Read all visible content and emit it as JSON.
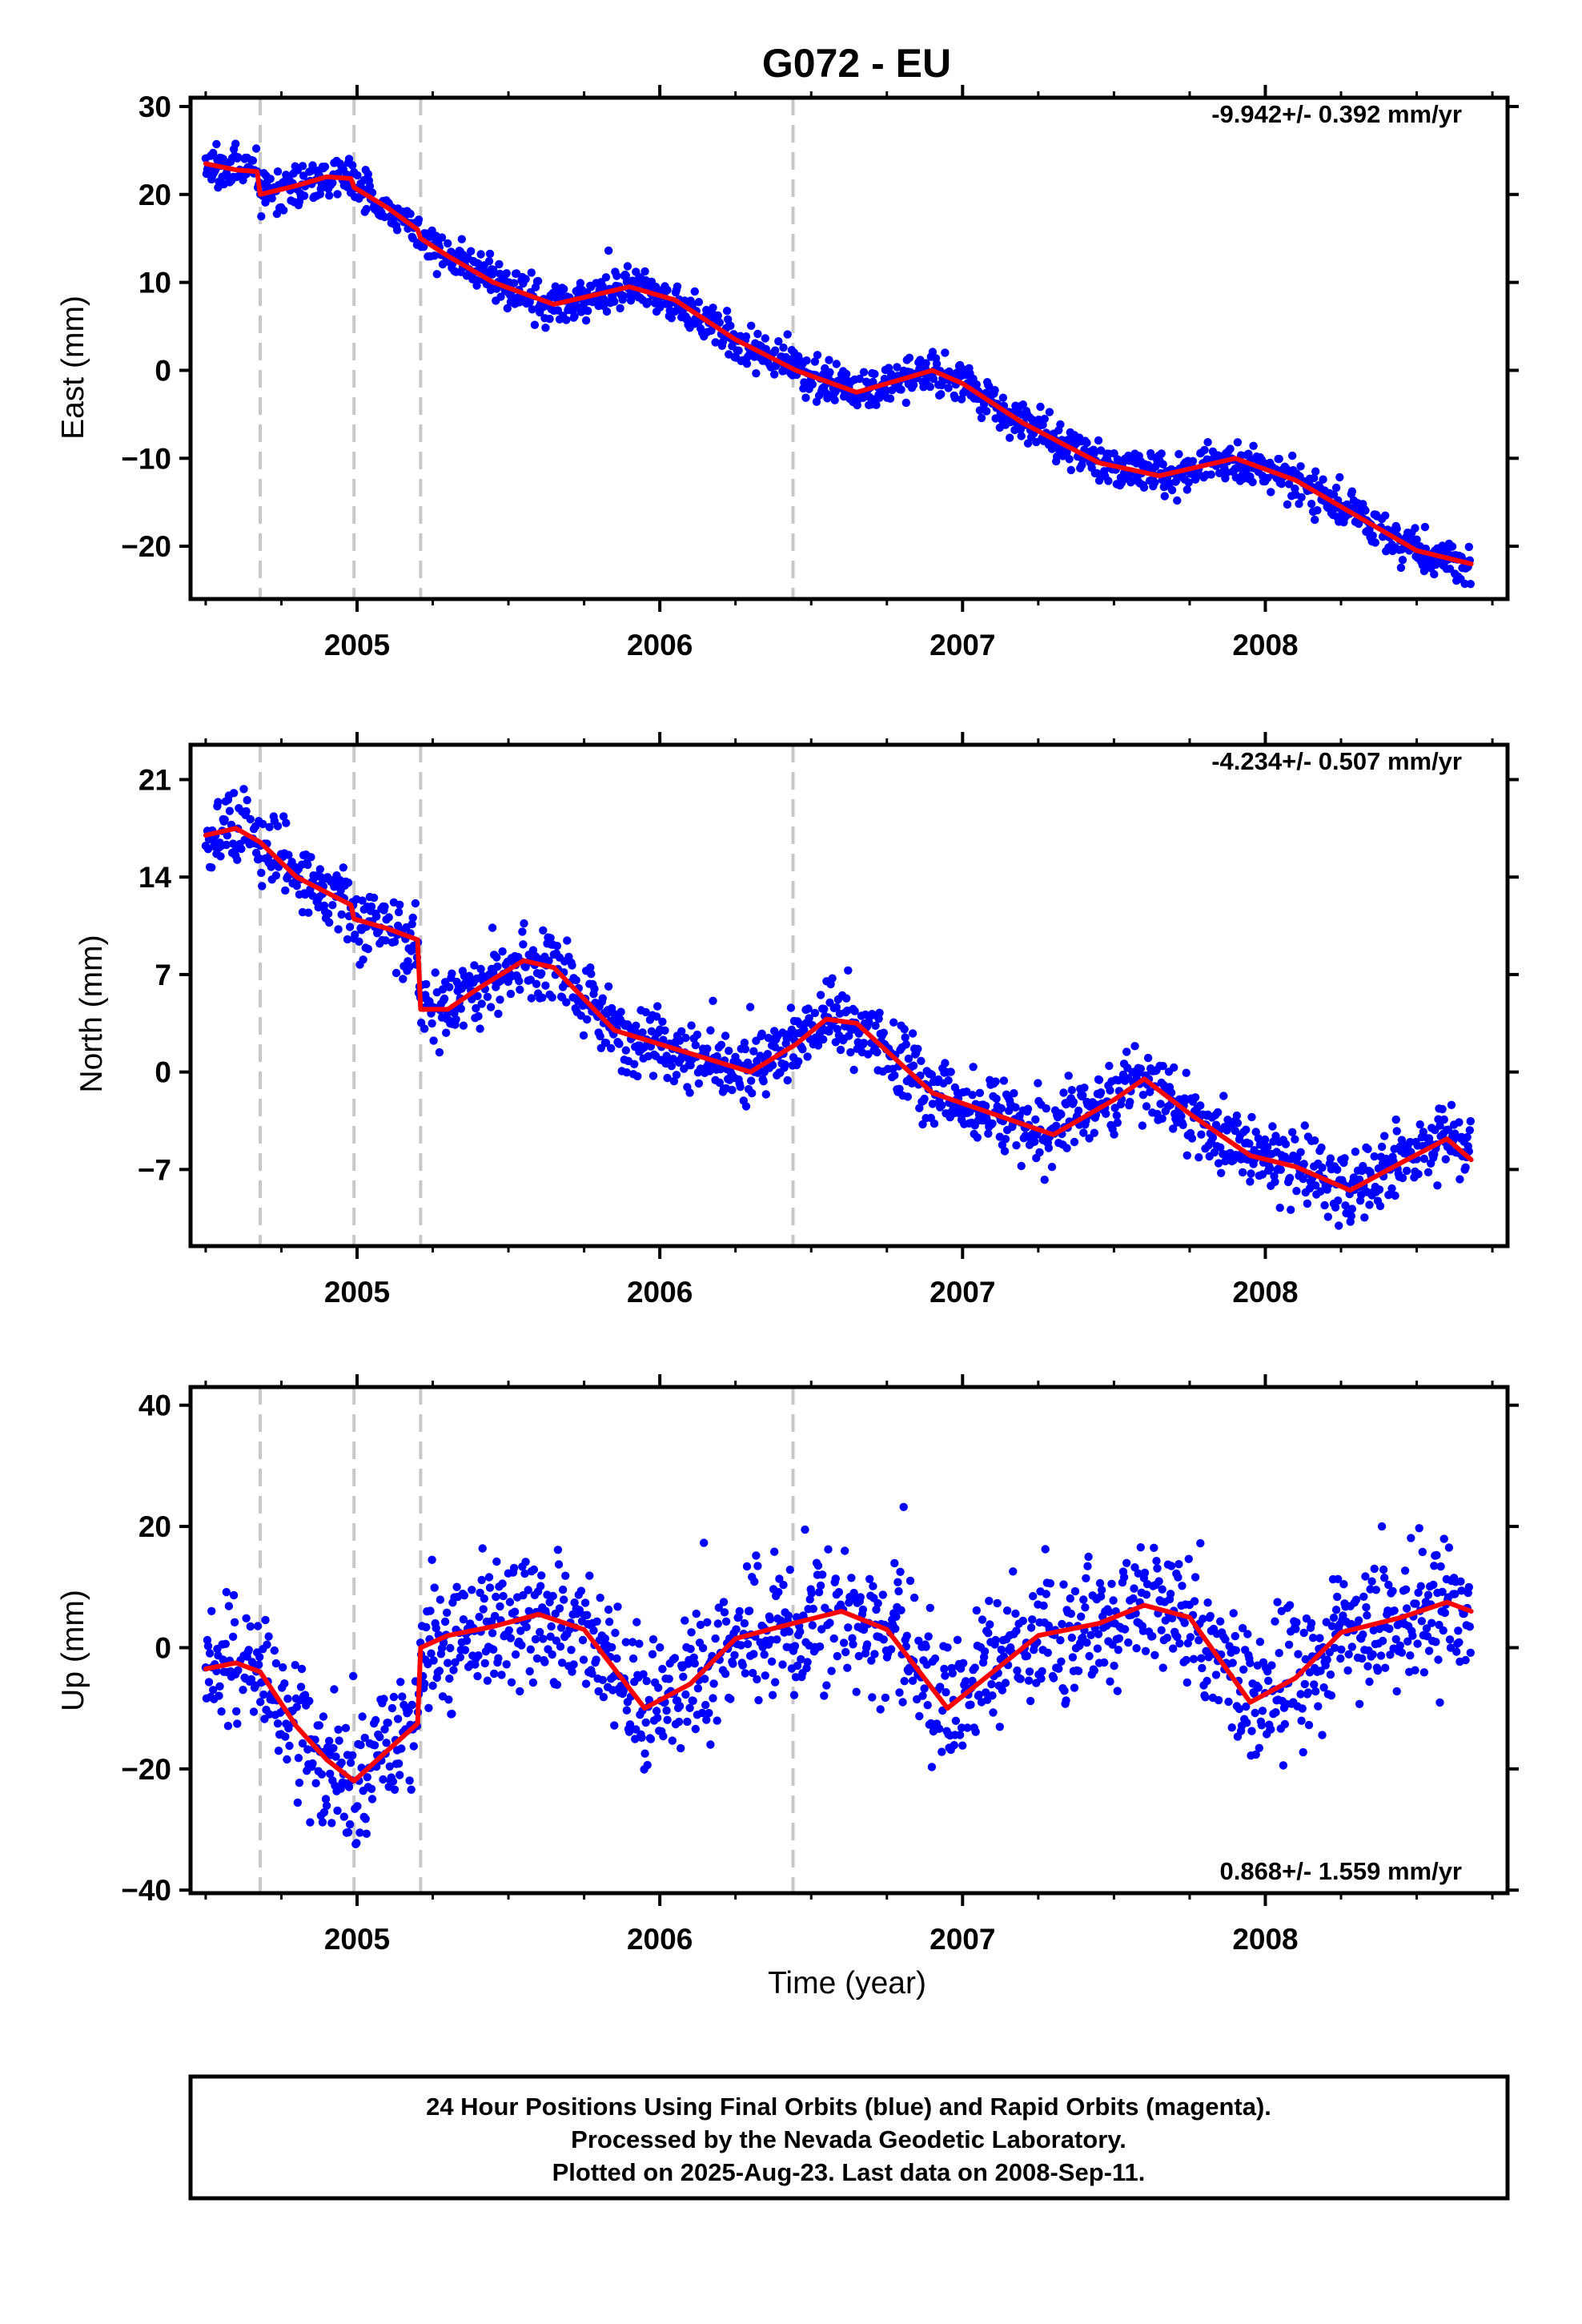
{
  "title": "G072 - EU",
  "colors": {
    "final_orbits": "#0000ff",
    "model": "#ff0000",
    "event_lines": "#c8c8c8"
  },
  "xlabel": "Time (year)",
  "caption": [
    "24 Hour Positions Using Final Orbits (blue) and Rapid Orbits (magenta).",
    "Processed by the Nevada Geodetic Laboratory.",
    "Plotted on 2025-Aug-23. Last data on 2008-Sep-11."
  ],
  "chart_data": [
    {
      "type": "scatter",
      "ylabel": "East (mm)",
      "rate": "-9.942+/- 0.392 mm/yr",
      "rate_position": "top-right",
      "xlim": [
        2004.45,
        2008.8
      ],
      "ylim": [
        -26,
        31
      ],
      "xticks": [
        2005,
        2006,
        2007,
        2008
      ],
      "yticks": [
        -20,
        -10,
        0,
        10,
        20,
        30
      ],
      "yticklabels": [
        "−20",
        "−10",
        "0",
        "10",
        "20",
        "30"
      ],
      "event_lines": [
        2004.68,
        2004.99,
        2005.21,
        2006.44
      ],
      "scatter_noise": 1.2,
      "trend": {
        "x": [
          2004.5,
          2004.6,
          2004.67,
          2004.68,
          2004.8,
          2004.9,
          2004.98,
          2004.99,
          2005.1,
          2005.2,
          2005.21,
          2005.3,
          2005.45,
          2005.65,
          2005.9,
          2006.05,
          2006.25,
          2006.45,
          2006.65,
          2006.9,
          2007.0,
          2007.2,
          2007.45,
          2007.65,
          2007.9,
          2008.1,
          2008.3,
          2008.5,
          2008.68
        ],
        "y": [
          23.5,
          22.8,
          22.6,
          20.0,
          21.0,
          22.0,
          21.8,
          20.8,
          18.5,
          16.0,
          15.0,
          13.0,
          10.0,
          7.5,
          9.5,
          8.0,
          3.5,
          0.0,
          -2.5,
          0.0,
          -1.5,
          -6.0,
          -10.5,
          -12.0,
          -10.0,
          -12.5,
          -16.5,
          -20.5,
          -22.0
        ]
      }
    },
    {
      "type": "scatter",
      "ylabel": "North (mm)",
      "rate": "-4.234+/- 0.507 mm/yr",
      "rate_position": "top-right",
      "xlim": [
        2004.45,
        2008.8
      ],
      "ylim": [
        -12.5,
        23.5
      ],
      "xticks": [
        2005,
        2006,
        2007,
        2008
      ],
      "yticks": [
        -7,
        0,
        7,
        14,
        21
      ],
      "yticklabels": [
        "−7",
        "0",
        "7",
        "14",
        "21"
      ],
      "event_lines": [
        2004.68,
        2004.99,
        2005.21,
        2006.44
      ],
      "scatter_noise": 1.3,
      "trend": {
        "x": [
          2004.5,
          2004.6,
          2004.68,
          2004.8,
          2004.98,
          2004.99,
          2005.1,
          2005.2,
          2005.21,
          2005.3,
          2005.4,
          2005.55,
          2005.65,
          2005.85,
          2006.0,
          2006.15,
          2006.3,
          2006.45,
          2006.55,
          2006.65,
          2006.9,
          2007.1,
          2007.3,
          2007.5,
          2007.6,
          2007.75,
          2007.95,
          2008.1,
          2008.28,
          2008.45,
          2008.6,
          2008.68
        ],
        "y": [
          17.0,
          17.5,
          16.5,
          14.0,
          12.0,
          11.0,
          10.3,
          9.5,
          4.5,
          4.5,
          6.0,
          8.0,
          7.5,
          3.0,
          2.0,
          1.0,
          0.0,
          2.0,
          3.8,
          3.5,
          -1.5,
          -3.0,
          -4.5,
          -2.0,
          -0.5,
          -3.0,
          -6.0,
          -6.8,
          -8.5,
          -6.5,
          -4.8,
          -6.3
        ]
      }
    },
    {
      "type": "scatter",
      "ylabel": "Up (mm)",
      "rate": "0.868+/- 1.559 mm/yr",
      "rate_position": "bottom-right",
      "xlim": [
        2004.45,
        2008.8
      ],
      "ylim": [
        -40.5,
        43
      ],
      "xticks": [
        2005,
        2006,
        2007,
        2008
      ],
      "yticks": [
        -40,
        -20,
        0,
        20,
        40
      ],
      "yticklabels": [
        "−40",
        "−20",
        "0",
        "20",
        "40"
      ],
      "event_lines": [
        2004.68,
        2004.99,
        2005.21,
        2006.44
      ],
      "scatter_noise": 5.5,
      "trend": {
        "x": [
          2004.5,
          2004.6,
          2004.68,
          2004.8,
          2004.9,
          2004.99,
          2005.1,
          2005.2,
          2005.21,
          2005.3,
          2005.45,
          2005.6,
          2005.75,
          2005.95,
          2006.1,
          2006.25,
          2006.4,
          2006.6,
          2006.75,
          2006.95,
          2007.1,
          2007.25,
          2007.45,
          2007.6,
          2007.75,
          2007.95,
          2008.1,
          2008.25,
          2008.45,
          2008.6,
          2008.68
        ],
        "y": [
          -3.5,
          -2.5,
          -4.0,
          -13.0,
          -18.5,
          -22.0,
          -17.0,
          -12.5,
          0.0,
          2.0,
          3.5,
          5.5,
          3.0,
          -10.0,
          -6.0,
          1.5,
          3.5,
          6.0,
          3.0,
          -10.0,
          -4.0,
          2.0,
          4.0,
          7.0,
          5.0,
          -9.0,
          -5.0,
          2.5,
          5.0,
          7.5,
          6.0
        ]
      }
    }
  ]
}
